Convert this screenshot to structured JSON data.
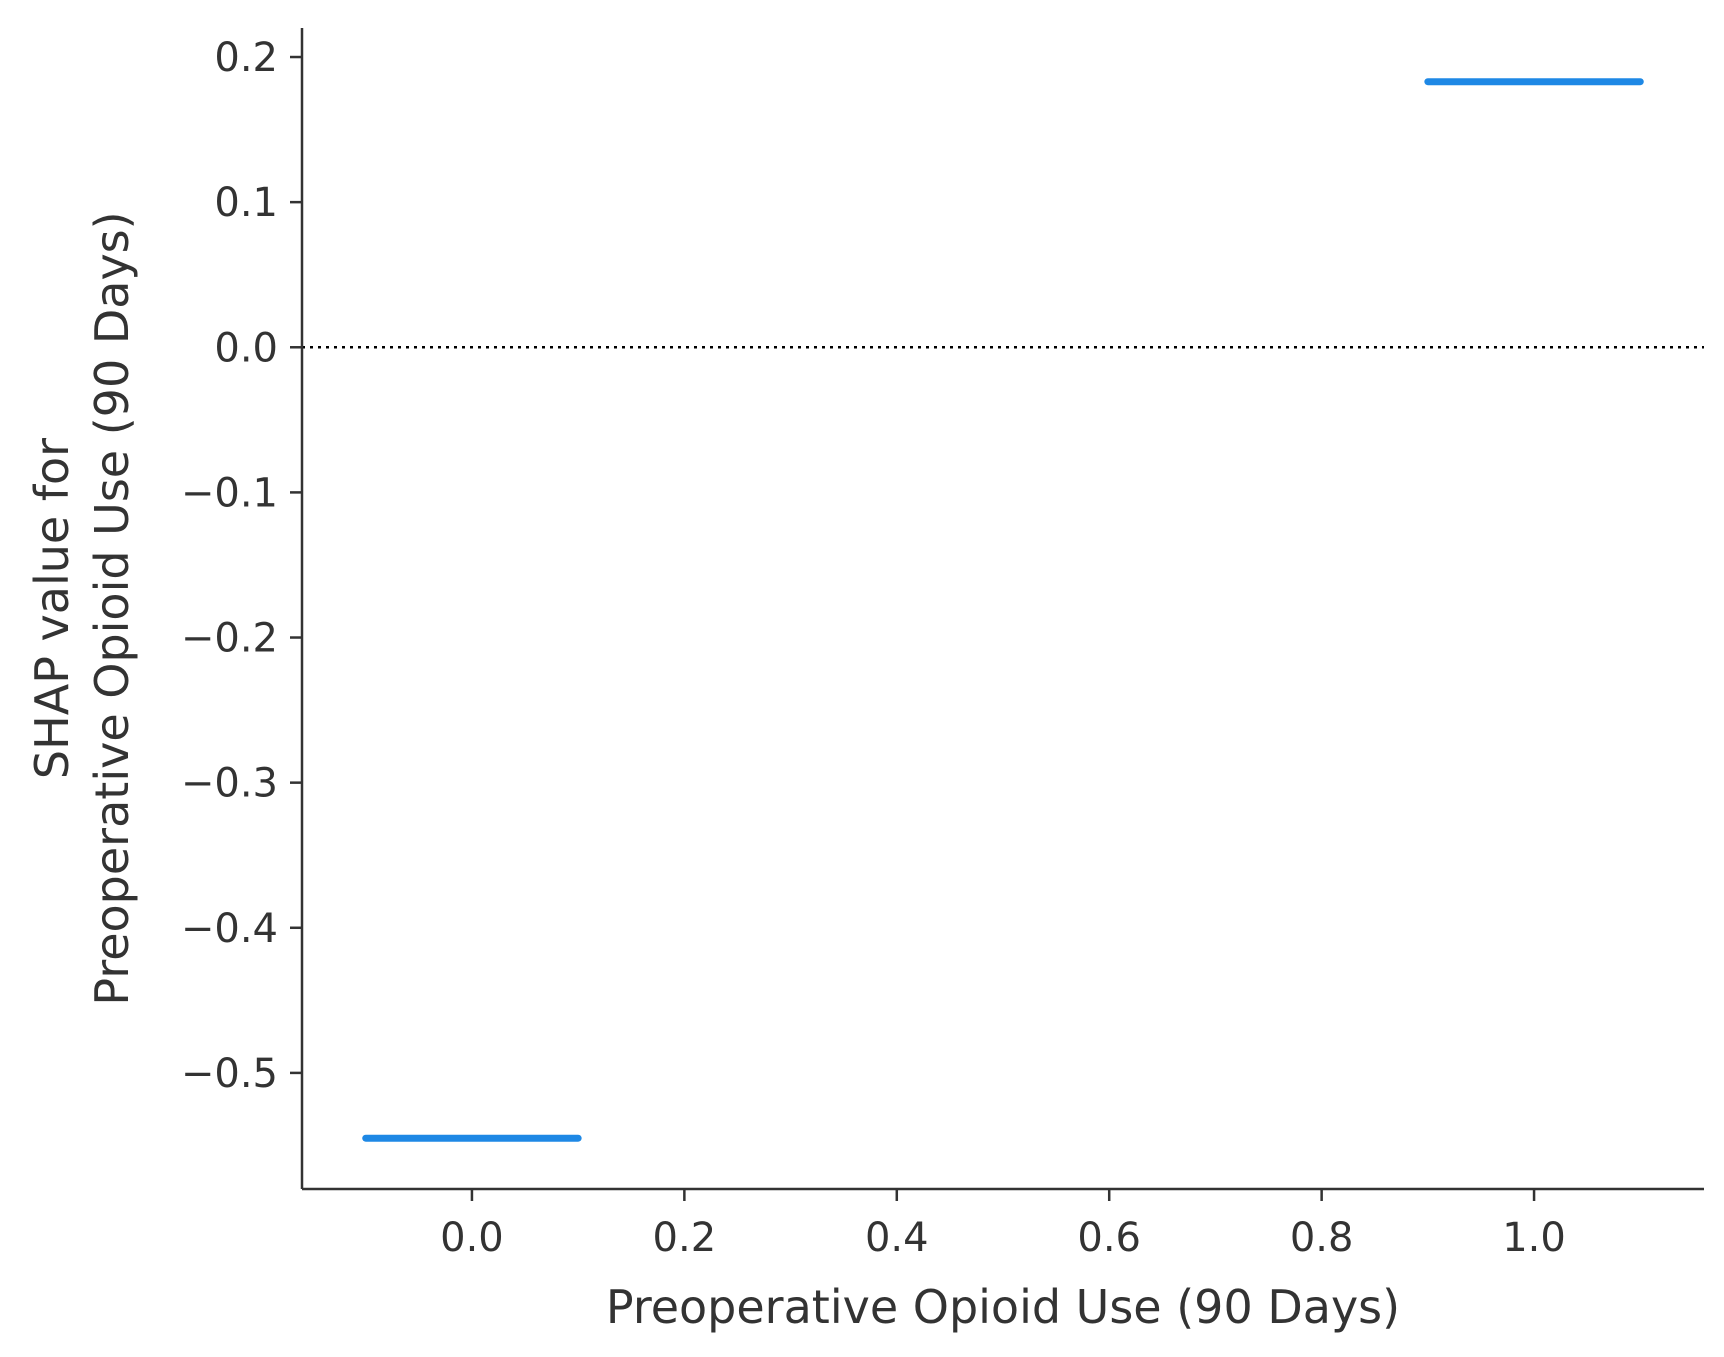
{
  "chart_data": {
    "type": "scatter",
    "title": "",
    "xlabel": "Preoperative Opioid Use (90 Days)",
    "ylabel_lines": [
      "SHAP value for",
      "Preoperative Opioid Use (90 Days)"
    ],
    "xlim": [
      -0.16,
      1.16
    ],
    "ylim": [
      -0.58,
      0.22
    ],
    "x_ticks": [
      0.0,
      0.2,
      0.4,
      0.6,
      0.8,
      1.0
    ],
    "x_tick_labels": [
      "0.0",
      "0.2",
      "0.4",
      "0.6",
      "0.8",
      "1.0"
    ],
    "y_ticks": [
      0.2,
      0.1,
      0.0,
      -0.1,
      -0.2,
      -0.3,
      -0.4,
      -0.5
    ],
    "y_tick_labels": [
      "0.2",
      "0.1",
      "0.0",
      "−0.1",
      "−0.2",
      "−0.3",
      "−0.4",
      "−0.5"
    ],
    "reference_line": {
      "y": 0.0,
      "style": "dotted",
      "color": "#000000"
    },
    "series": [
      {
        "color": "#1e88e5",
        "points": [
          {
            "x": 0.0,
            "y": -0.545,
            "x_jitter": [
              -0.1,
              0.1
            ]
          },
          {
            "x": 1.0,
            "y": 0.183,
            "x_jitter": [
              -0.1,
              0.1
            ]
          }
        ]
      }
    ],
    "grid": false,
    "legend": "none"
  }
}
